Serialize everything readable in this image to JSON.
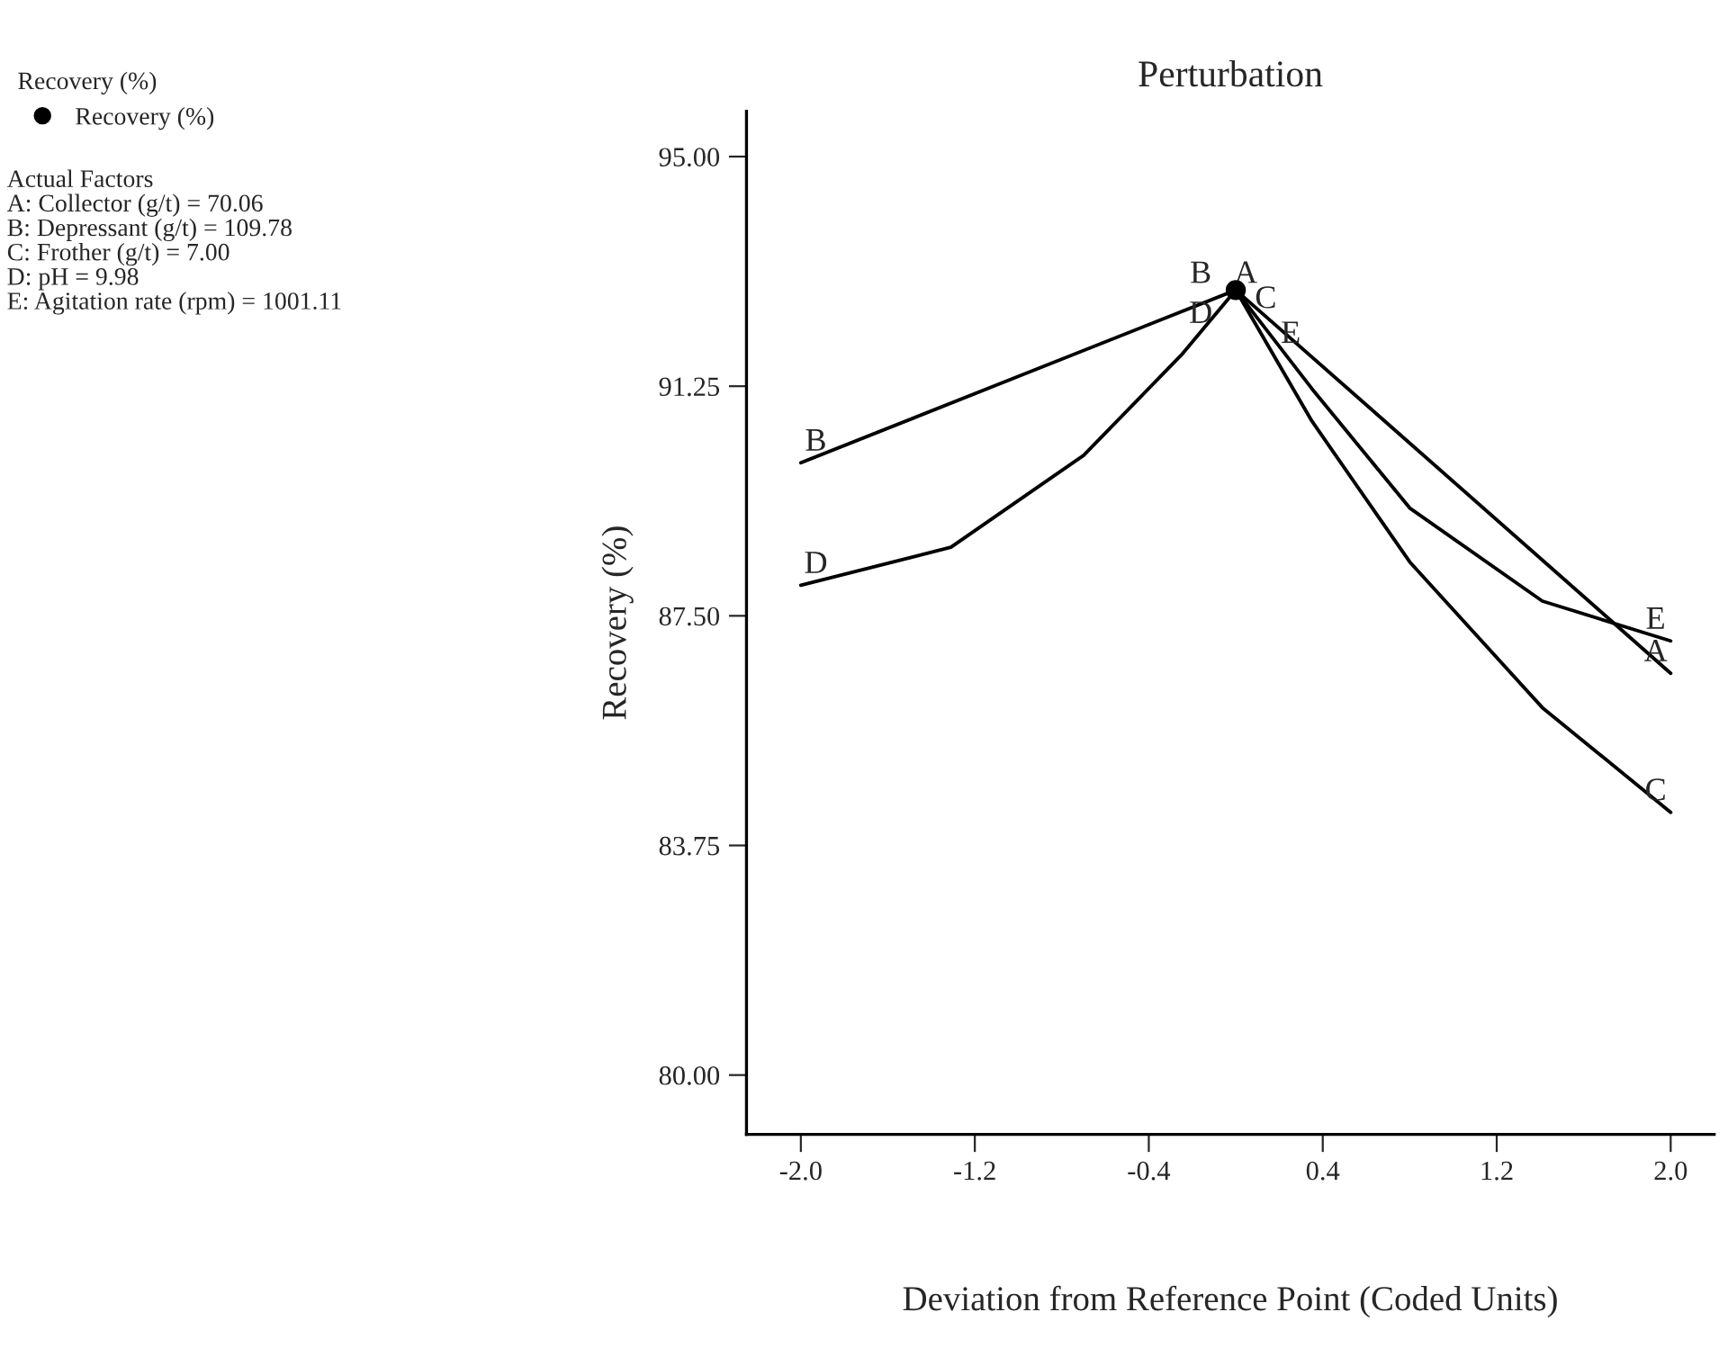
{
  "chart_data": {
    "type": "line",
    "title": "Perturbation",
    "xlabel": "Deviation from Reference Point (Coded Units)",
    "ylabel": "Recovery (%)",
    "legend_title": "Recovery (%)",
    "legend": "top left",
    "annotations": [
      "Actual Factors\nA: Collector (g/t) = 70.06\nB: Depressant (g/t) = 109.78\nC: Frother (g/t) = 7.00\nD: pH = 9.98\nE: Agitation rate (rpm) = 1001.11"
    ],
    "series": [
      {
        "name": "A",
        "color": "#000000",
        "x": [
          0,
          0.8,
          2.0
        ],
        "values": [
          92.82,
          90.32,
          86.56
        ]
      },
      {
        "name": "B",
        "color": "#000000",
        "x": [
          -2.0,
          -1.0,
          0
        ],
        "values": [
          90.0,
          91.41,
          92.82
        ]
      },
      {
        "name": "C",
        "color": "#000000",
        "x": [
          0,
          0.35,
          0.8,
          1.41,
          2.0
        ],
        "values": [
          92.82,
          90.68,
          88.38,
          86.0,
          84.29
        ]
      },
      {
        "name": "D",
        "color": "#000000",
        "x": [
          -2.0,
          -1.31,
          -0.7,
          -0.25,
          0
        ],
        "values": [
          88.0,
          88.62,
          90.12,
          91.76,
          92.82
        ]
      },
      {
        "name": "E",
        "color": "#000000",
        "x": [
          0,
          0.35,
          0.8,
          1.41,
          2.0
        ],
        "values": [
          92.82,
          91.21,
          89.26,
          87.74,
          87.09
        ]
      },
      {
        "name": "Recovery (%)",
        "type": "scatter",
        "marker": "circle",
        "color": "#000000",
        "x": [
          0
        ],
        "values": [
          92.82
        ]
      }
    ],
    "xlim": [
      -2.25,
      2.2
    ],
    "ylim": [
      79.03,
      95.74
    ],
    "xticks": [
      {
        "value": -2.0,
        "label": "-2.0"
      },
      {
        "value": -1.2,
        "label": "-1.2"
      },
      {
        "value": -0.4,
        "label": "-0.4"
      },
      {
        "value": 0.4,
        "label": "0.4"
      },
      {
        "value": 1.2,
        "label": "1.2"
      },
      {
        "value": 2.0,
        "label": "2.0"
      }
    ],
    "yticks": [
      {
        "value": 80,
        "label": "80.00"
      },
      {
        "value": 83.75,
        "label": "83.75"
      },
      {
        "value": 87.5,
        "label": "87.50"
      },
      {
        "value": 91.25,
        "label": "91.25"
      },
      {
        "value": 95,
        "label": "95.00"
      }
    ],
    "grid": false
  }
}
